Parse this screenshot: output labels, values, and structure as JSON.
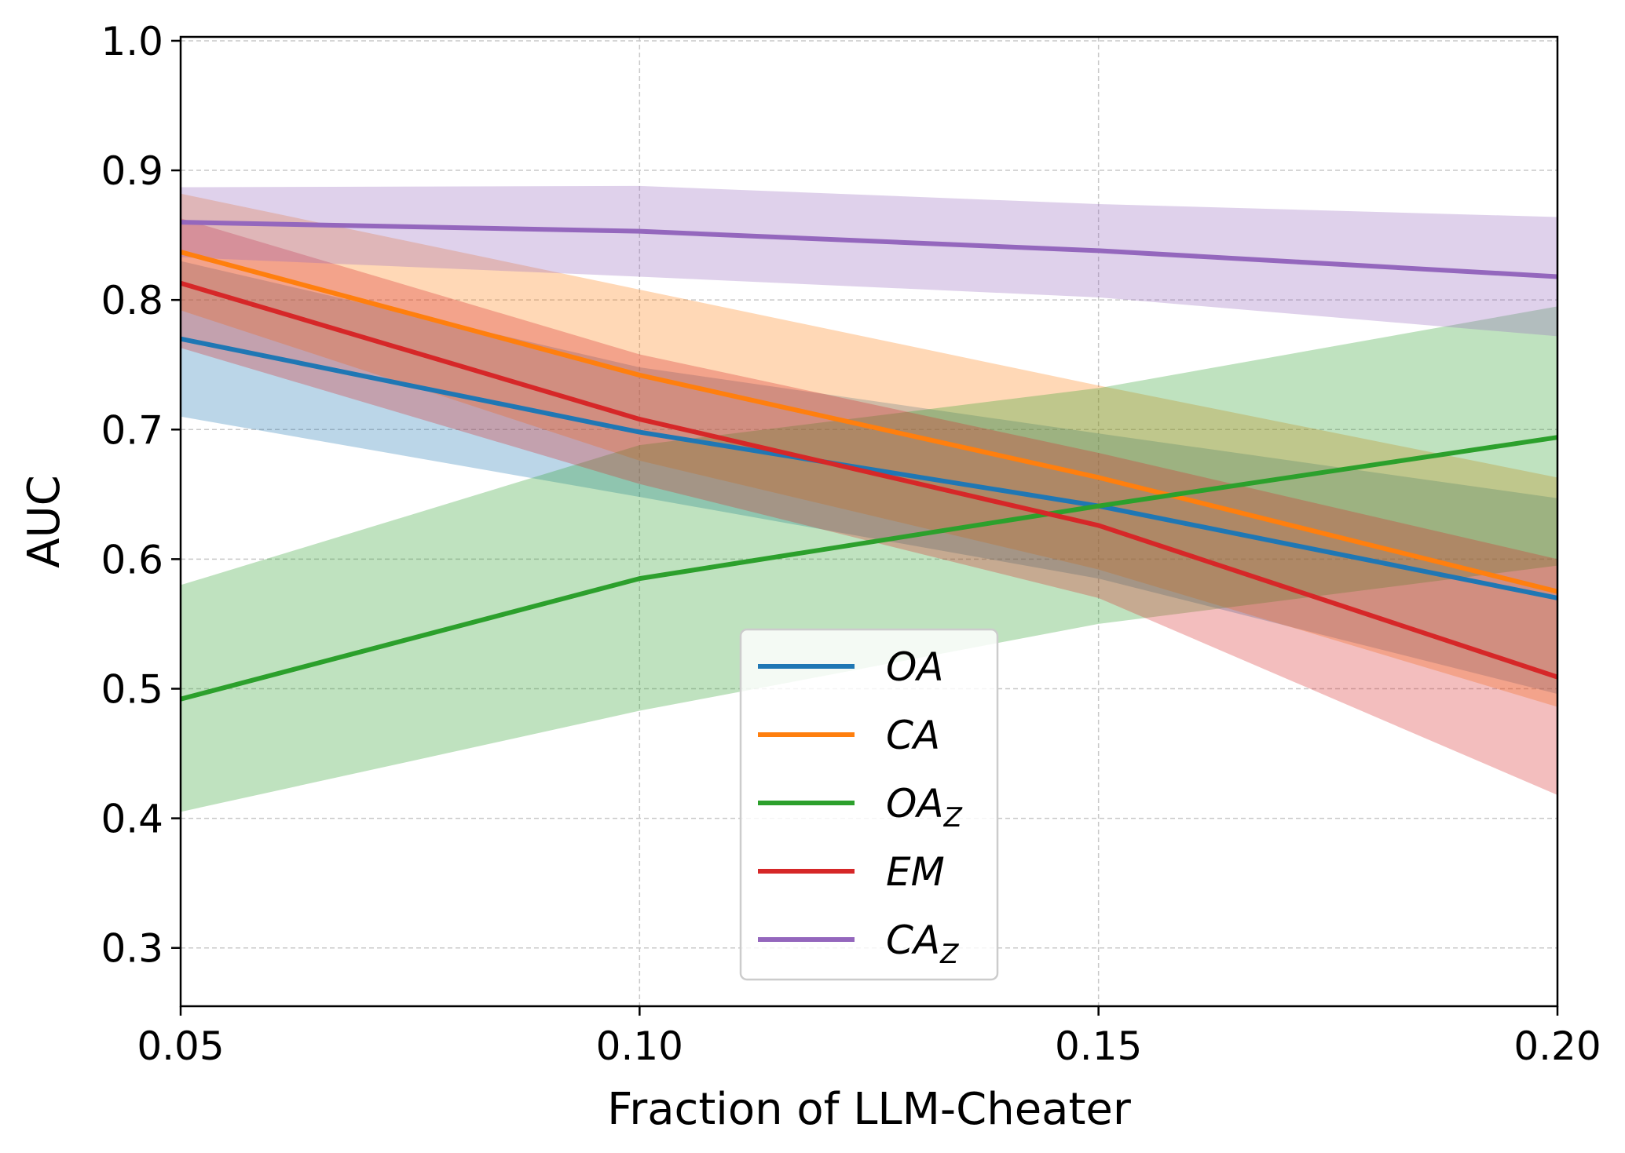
{
  "chart_data": {
    "type": "line",
    "title": "",
    "xlabel": "Fraction of LLM-Cheater",
    "ylabel": "AUC",
    "x": [
      0.05,
      0.1,
      0.15,
      0.2
    ],
    "xlim": [
      0.05,
      0.2
    ],
    "ylim": [
      0.255,
      1.003
    ],
    "xticks": [
      0.05,
      0.1,
      0.15,
      0.2
    ],
    "xtick_labels": [
      "0.05",
      "0.10",
      "0.15",
      "0.20"
    ],
    "yticks": [
      0.3,
      0.4,
      0.5,
      0.6,
      0.7,
      0.8,
      0.9,
      1.0
    ],
    "ytick_labels": [
      "0.3",
      "0.4",
      "0.5",
      "0.6",
      "0.7",
      "0.8",
      "0.9",
      "1.0"
    ],
    "grid": true,
    "legend_position": "lower-center",
    "series": [
      {
        "name": "OA",
        "sub": "",
        "color": "#1f77b4",
        "values": [
          0.77,
          0.698,
          0.641,
          0.57
        ],
        "lower": [
          0.71,
          0.648,
          0.585,
          0.496
        ],
        "upper": [
          0.83,
          0.748,
          0.697,
          0.647
        ]
      },
      {
        "name": "CA",
        "sub": "",
        "color": "#ff7f0e",
        "values": [
          0.837,
          0.742,
          0.663,
          0.575
        ],
        "lower": [
          0.792,
          0.676,
          0.592,
          0.486
        ],
        "upper": [
          0.882,
          0.808,
          0.734,
          0.663
        ]
      },
      {
        "name": "OA",
        "sub": "Z",
        "color": "#2ca02c",
        "values": [
          0.492,
          0.585,
          0.641,
          0.694
        ],
        "lower": [
          0.405,
          0.483,
          0.55,
          0.595
        ],
        "upper": [
          0.58,
          0.688,
          0.732,
          0.795
        ]
      },
      {
        "name": "EM",
        "sub": "",
        "color": "#d62728",
        "values": [
          0.813,
          0.708,
          0.626,
          0.509
        ],
        "lower": [
          0.763,
          0.658,
          0.57,
          0.418
        ],
        "upper": [
          0.863,
          0.758,
          0.682,
          0.6
        ]
      },
      {
        "name": "CA",
        "sub": "Z",
        "color": "#9467bd",
        "values": [
          0.86,
          0.853,
          0.838,
          0.818
        ],
        "lower": [
          0.833,
          0.818,
          0.802,
          0.772
        ],
        "upper": [
          0.887,
          0.888,
          0.874,
          0.864
        ]
      }
    ]
  }
}
